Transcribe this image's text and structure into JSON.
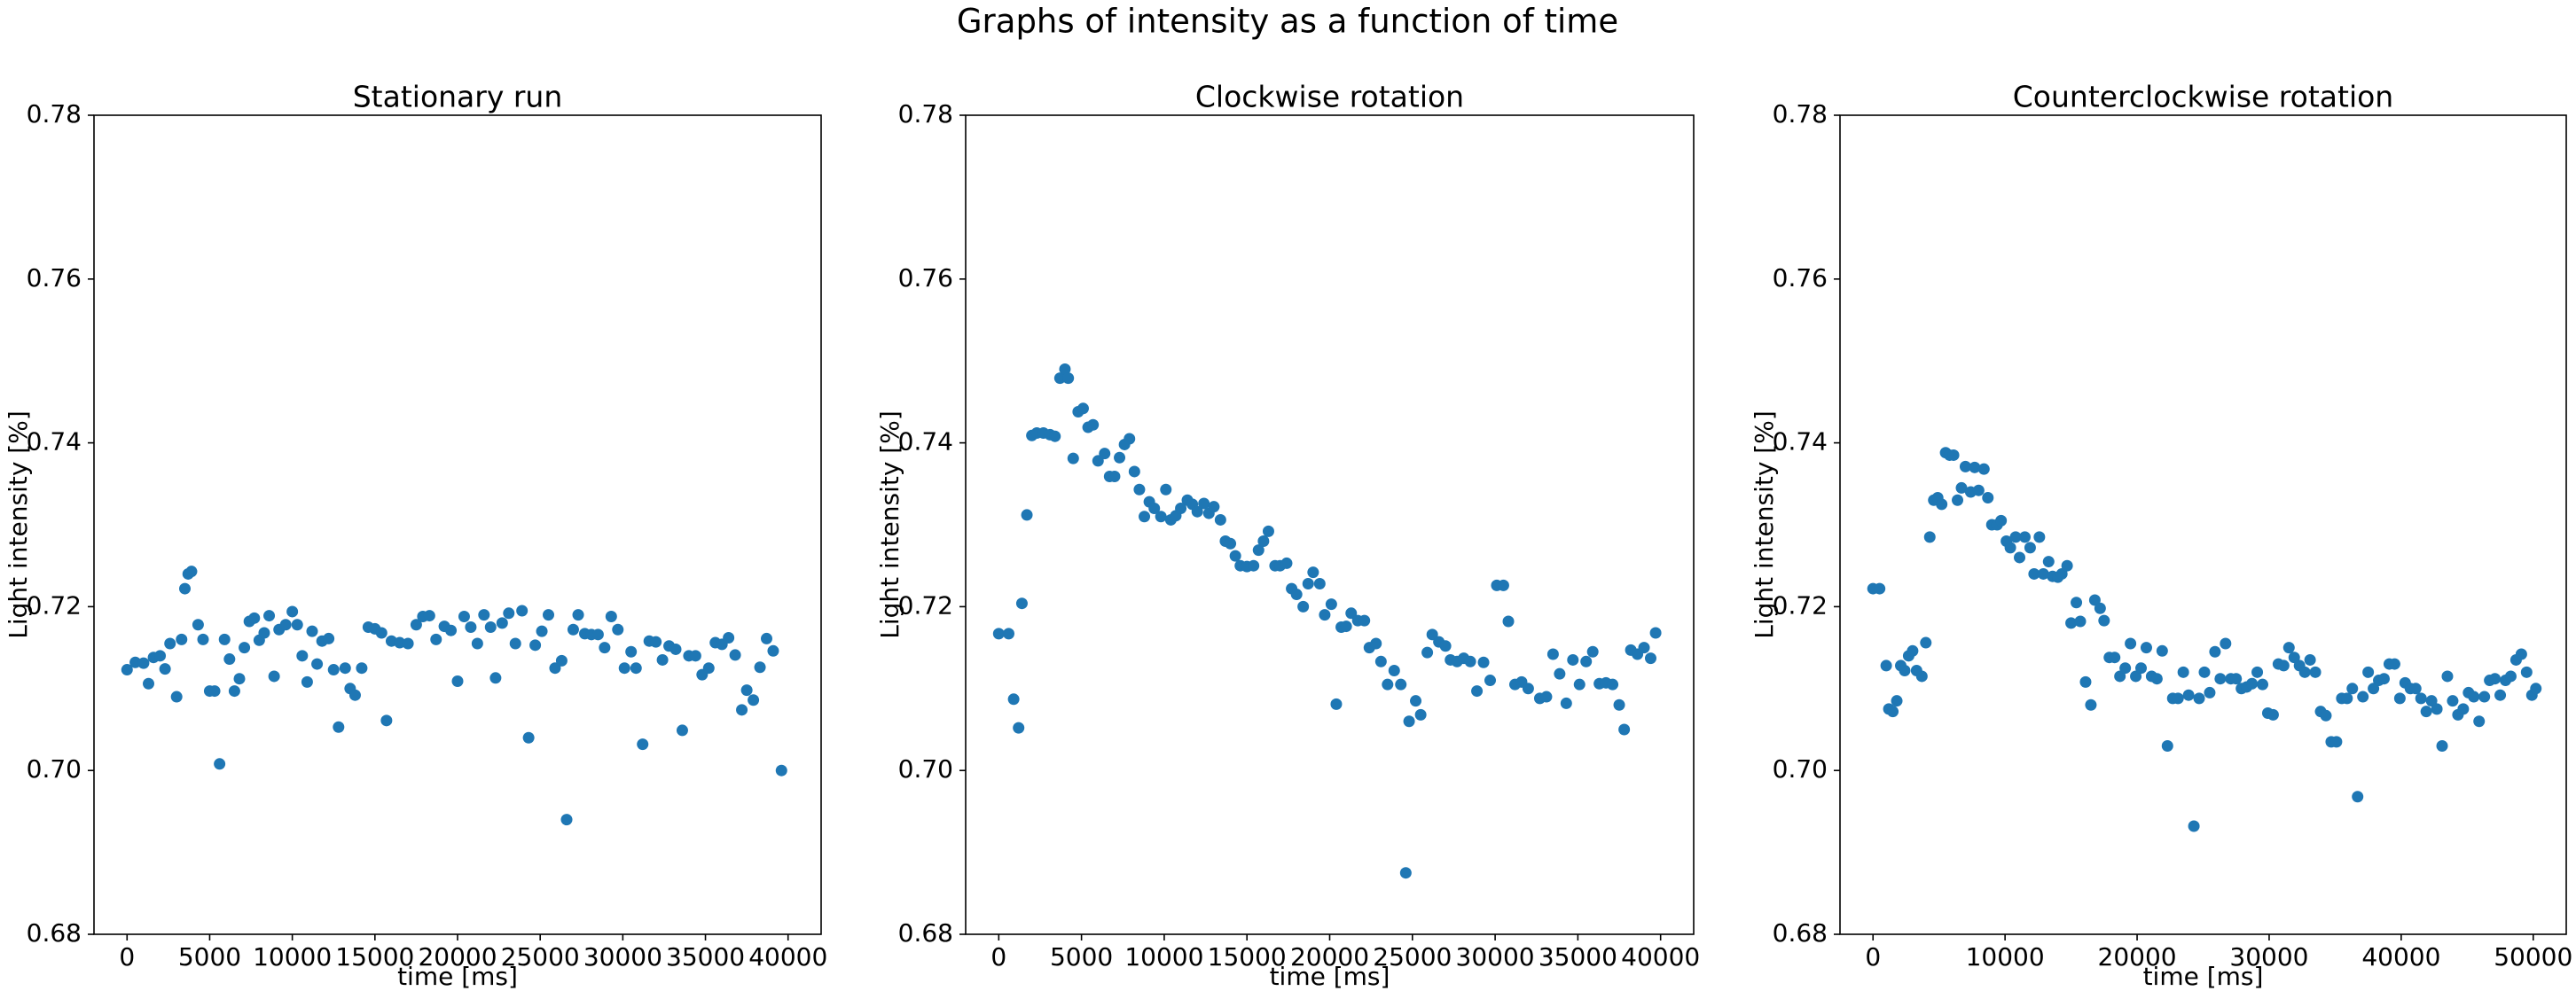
{
  "title": "Graphs of intensity as a function of time",
  "chart_data": [
    {
      "type": "scatter",
      "title": "Stationary run",
      "xlabel": "time [ms]",
      "ylabel": "Light intensity [%]",
      "color": "#1f77b4",
      "xlim": [
        -2000,
        42000
      ],
      "ylim": [
        0.68,
        0.78
      ],
      "xticks": [
        0,
        5000,
        10000,
        15000,
        20000,
        25000,
        30000,
        35000,
        40000
      ],
      "yticks": [
        0.68,
        {
          "value": 0.7,
          "label": "0.70"
        },
        0.72,
        0.74,
        0.76,
        0.78
      ],
      "x": [
        0,
        500,
        1000,
        1300,
        1600,
        2000,
        2300,
        2600,
        3000,
        3300,
        3500,
        3700,
        3900,
        4300,
        4600,
        5000,
        5300,
        5600,
        5900,
        6200,
        6500,
        6800,
        7100,
        7400,
        7700,
        8000,
        8300,
        8600,
        8900,
        9200,
        9600,
        10000,
        10300,
        10600,
        10900,
        11200,
        11500,
        11800,
        12200,
        12500,
        12800,
        13200,
        13500,
        13800,
        14200,
        14600,
        15000,
        15400,
        15700,
        16000,
        16500,
        17000,
        17500,
        17900,
        18300,
        18700,
        19200,
        19600,
        20000,
        20400,
        20800,
        21200,
        21600,
        22000,
        22300,
        22700,
        23100,
        23500,
        23900,
        24300,
        24700,
        25100,
        25500,
        25900,
        26300,
        26600,
        27000,
        27300,
        27700,
        28100,
        28500,
        28900,
        29300,
        29700,
        30100,
        30500,
        30800,
        31200,
        31600,
        32000,
        32400,
        32800,
        33200,
        33600,
        34000,
        34400,
        34800,
        35200,
        35600,
        36000,
        36400,
        36800,
        37200,
        37500,
        37900,
        38300,
        38700,
        39100,
        39600
      ],
      "values": [
        0.7123,
        0.7132,
        0.7131,
        0.7106,
        0.7138,
        0.714,
        0.7124,
        0.7155,
        0.709,
        0.716,
        0.7222,
        0.724,
        0.7243,
        0.7178,
        0.716,
        0.7097,
        0.7097,
        0.7008,
        0.716,
        0.7136,
        0.7097,
        0.7112,
        0.715,
        0.7182,
        0.7186,
        0.7159,
        0.7168,
        0.7189,
        0.7115,
        0.7172,
        0.7178,
        0.7194,
        0.7178,
        0.714,
        0.7108,
        0.717,
        0.713,
        0.7158,
        0.7161,
        0.7123,
        0.7053,
        0.7125,
        0.71,
        0.7092,
        0.7125,
        0.7175,
        0.7173,
        0.7168,
        0.7061,
        0.7158,
        0.7156,
        0.7155,
        0.7178,
        0.7188,
        0.7189,
        0.716,
        0.7176,
        0.7171,
        0.7109,
        0.7188,
        0.7175,
        0.7155,
        0.719,
        0.7175,
        0.7113,
        0.718,
        0.7192,
        0.7155,
        0.7195,
        0.704,
        0.7153,
        0.717,
        0.719,
        0.7125,
        0.7134,
        0.694,
        0.7172,
        0.719,
        0.7167,
        0.7166,
        0.7166,
        0.715,
        0.7188,
        0.7172,
        0.7125,
        0.7145,
        0.7125,
        0.7032,
        0.7158,
        0.7157,
        0.7135,
        0.7152,
        0.7148,
        0.7049,
        0.714,
        0.714,
        0.7117,
        0.7125,
        0.7156,
        0.7154,
        0.7162,
        0.7141,
        0.7074,
        0.7098,
        0.7086,
        0.7126,
        0.7161,
        0.7146,
        0.7
      ]
    },
    {
      "type": "scatter",
      "title": "Clockwise rotation",
      "xlabel": "time [ms]",
      "ylabel": "Light intensity [%]",
      "color": "#1f77b4",
      "xlim": [
        -2000,
        42000
      ],
      "ylim": [
        0.68,
        0.78
      ],
      "xticks": [
        0,
        5000,
        10000,
        15000,
        20000,
        25000,
        30000,
        35000,
        40000
      ],
      "yticks": [
        0.68,
        {
          "value": 0.7,
          "label": "0.70"
        },
        0.72,
        0.74,
        0.76,
        0.78
      ],
      "x": [
        0,
        600,
        900,
        1200,
        1400,
        1700,
        2000,
        2300,
        2700,
        3100,
        3400,
        3700,
        4000,
        4200,
        4500,
        4800,
        5100,
        5400,
        5700,
        6000,
        6400,
        6700,
        7000,
        7300,
        7600,
        7900,
        8200,
        8500,
        8800,
        9100,
        9400,
        9800,
        10100,
        10400,
        10700,
        11000,
        11400,
        11700,
        12000,
        12400,
        12700,
        13000,
        13400,
        13700,
        14000,
        14300,
        14600,
        15000,
        15400,
        15700,
        16000,
        16300,
        16700,
        17000,
        17400,
        17700,
        18000,
        18400,
        18700,
        19000,
        19400,
        19700,
        20100,
        20400,
        20700,
        21000,
        21300,
        21700,
        22100,
        22400,
        22800,
        23100,
        23500,
        23900,
        24300,
        24600,
        24800,
        25200,
        25500,
        25900,
        26200,
        26600,
        27000,
        27300,
        27700,
        28100,
        28500,
        28900,
        29300,
        29700,
        30100,
        30500,
        30800,
        31200,
        31600,
        32000,
        32700,
        33100,
        33500,
        33900,
        34300,
        34700,
        35100,
        35500,
        35900,
        36300,
        36700,
        37100,
        37500,
        37800,
        38200,
        38600,
        39000,
        39400,
        39700
      ],
      "values": [
        0.7167,
        0.7167,
        0.7087,
        0.7052,
        0.7204,
        0.7312,
        0.7409,
        0.7412,
        0.7412,
        0.741,
        0.7408,
        0.7479,
        0.749,
        0.7479,
        0.7381,
        0.7438,
        0.7442,
        0.7419,
        0.7422,
        0.7378,
        0.7387,
        0.7359,
        0.7359,
        0.7382,
        0.7398,
        0.7405,
        0.7365,
        0.7343,
        0.731,
        0.7328,
        0.732,
        0.731,
        0.7343,
        0.7306,
        0.7311,
        0.732,
        0.733,
        0.7325,
        0.7316,
        0.7326,
        0.7314,
        0.7322,
        0.7306,
        0.728,
        0.7277,
        0.7262,
        0.725,
        0.7249,
        0.725,
        0.7269,
        0.728,
        0.7292,
        0.725,
        0.725,
        0.7253,
        0.7222,
        0.7215,
        0.72,
        0.7228,
        0.7242,
        0.7228,
        0.719,
        0.7203,
        0.7081,
        0.7175,
        0.7176,
        0.7192,
        0.7183,
        0.7183,
        0.715,
        0.7155,
        0.7133,
        0.7105,
        0.7122,
        0.7105,
        0.6875,
        0.706,
        0.7085,
        0.7068,
        0.7144,
        0.7166,
        0.7157,
        0.7152,
        0.7135,
        0.7133,
        0.7137,
        0.7133,
        0.7097,
        0.7132,
        0.711,
        0.7226,
        0.7226,
        0.7182,
        0.7105,
        0.7108,
        0.71,
        0.7088,
        0.709,
        0.7142,
        0.7118,
        0.7082,
        0.7135,
        0.7105,
        0.7133,
        0.7145,
        0.7106,
        0.7107,
        0.7105,
        0.708,
        0.705,
        0.7147,
        0.7142,
        0.715,
        0.7137,
        0.7168
      ]
    },
    {
      "type": "scatter",
      "title": "Counterclockwise rotation",
      "xlabel": "time [ms]",
      "ylabel": "Light intensity [%]",
      "color": "#1f77b4",
      "xlim": [
        -2500,
        52500
      ],
      "ylim": [
        0.68,
        0.78
      ],
      "xticks": [
        0,
        10000,
        20000,
        30000,
        40000,
        50000
      ],
      "yticks": [
        0.68,
        {
          "value": 0.7,
          "label": "0.70"
        },
        0.72,
        0.74,
        0.76,
        0.78
      ],
      "x": [
        0,
        500,
        1000,
        1200,
        1500,
        1800,
        2100,
        2400,
        2700,
        3000,
        3300,
        3700,
        4000,
        4300,
        4600,
        4900,
        5200,
        5500,
        5800,
        6100,
        6400,
        6700,
        7000,
        7400,
        7700,
        8000,
        8400,
        8700,
        9000,
        9400,
        9700,
        10100,
        10400,
        10800,
        11100,
        11500,
        11900,
        12200,
        12600,
        12900,
        13300,
        13600,
        14000,
        14300,
        14700,
        15000,
        15400,
        15700,
        16100,
        16500,
        16800,
        17200,
        17500,
        17900,
        18300,
        18700,
        19100,
        19500,
        19900,
        20300,
        20700,
        21100,
        21500,
        21900,
        22300,
        22700,
        23100,
        23500,
        23900,
        24300,
        24700,
        25100,
        25500,
        25900,
        26300,
        26700,
        27100,
        27500,
        27900,
        28300,
        28700,
        29100,
        29500,
        29900,
        30300,
        30700,
        31100,
        31500,
        31900,
        32300,
        32700,
        33100,
        33500,
        33900,
        34300,
        34700,
        35100,
        35500,
        35900,
        36300,
        36700,
        37100,
        37500,
        37900,
        38300,
        38700,
        39100,
        39500,
        39900,
        40300,
        40700,
        41100,
        41500,
        41900,
        42300,
        42700,
        43100,
        43500,
        43900,
        44300,
        44700,
        45100,
        45500,
        45900,
        46300,
        46700,
        47100,
        47500,
        47900,
        48300,
        48700,
        49100,
        49500,
        49900,
        50200
      ],
      "values": [
        0.7222,
        0.7222,
        0.7128,
        0.7075,
        0.7072,
        0.7085,
        0.7128,
        0.7122,
        0.714,
        0.7146,
        0.7122,
        0.7115,
        0.7156,
        0.7285,
        0.733,
        0.7333,
        0.7325,
        0.7388,
        0.7385,
        0.7385,
        0.733,
        0.7345,
        0.7371,
        0.734,
        0.737,
        0.7342,
        0.7368,
        0.7333,
        0.73,
        0.73,
        0.7305,
        0.728,
        0.7272,
        0.7285,
        0.726,
        0.7285,
        0.7272,
        0.724,
        0.7285,
        0.724,
        0.7255,
        0.7237,
        0.7236,
        0.724,
        0.725,
        0.718,
        0.7205,
        0.7182,
        0.7108,
        0.708,
        0.7208,
        0.7198,
        0.7183,
        0.7138,
        0.7138,
        0.7115,
        0.7125,
        0.7155,
        0.7115,
        0.7125,
        0.715,
        0.7115,
        0.7112,
        0.7146,
        0.703,
        0.7088,
        0.7088,
        0.712,
        0.7092,
        0.6932,
        0.7088,
        0.712,
        0.7095,
        0.7145,
        0.7112,
        0.7155,
        0.7112,
        0.7112,
        0.71,
        0.7102,
        0.7106,
        0.712,
        0.7105,
        0.707,
        0.7068,
        0.713,
        0.7128,
        0.715,
        0.7138,
        0.7128,
        0.712,
        0.7135,
        0.712,
        0.7072,
        0.7067,
        0.7035,
        0.7035,
        0.7088,
        0.7088,
        0.71,
        0.6968,
        0.709,
        0.712,
        0.71,
        0.711,
        0.7112,
        0.713,
        0.713,
        0.7088,
        0.7107,
        0.71,
        0.71,
        0.7088,
        0.7072,
        0.7085,
        0.7075,
        0.703,
        0.7115,
        0.7085,
        0.7068,
        0.7075,
        0.7095,
        0.709,
        0.706,
        0.709,
        0.711,
        0.7112,
        0.7092,
        0.711,
        0.7115,
        0.7135,
        0.7142,
        0.712,
        0.7092,
        0.71
      ]
    }
  ]
}
